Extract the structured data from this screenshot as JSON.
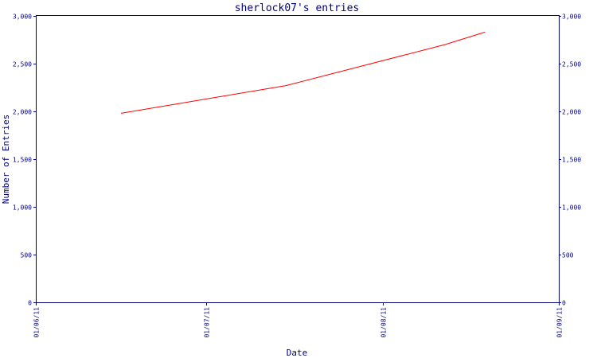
{
  "chart_data": {
    "type": "line",
    "title": "sherlock07's entries",
    "xlabel": "Date",
    "ylabel": "Number of Entries",
    "ylim": [
      0,
      3000
    ],
    "y_ticks": [
      0,
      500,
      1000,
      1500,
      2000,
      2500,
      3000
    ],
    "y_tick_labels": [
      "0",
      "500",
      "1,000",
      "1,500",
      "2,000",
      "2,500",
      "3,000"
    ],
    "x_ticks": [
      "2011-06-01",
      "2011-07-01",
      "2011-08-01",
      "2011-09-01"
    ],
    "x_tick_labels": [
      "01/06/11",
      "01/07/11",
      "01/08/11",
      "01/09/11"
    ],
    "xlim": [
      "2011-06-01",
      "2011-09-01"
    ],
    "grid": false,
    "line_color": "#ff0000",
    "axis_color": "#000080",
    "series": [
      {
        "x": [
          "2011-06-16",
          "2011-07-15",
          "2011-08-12",
          "2011-08-19"
        ],
        "y": [
          1980,
          2270,
          2700,
          2830
        ]
      }
    ]
  }
}
